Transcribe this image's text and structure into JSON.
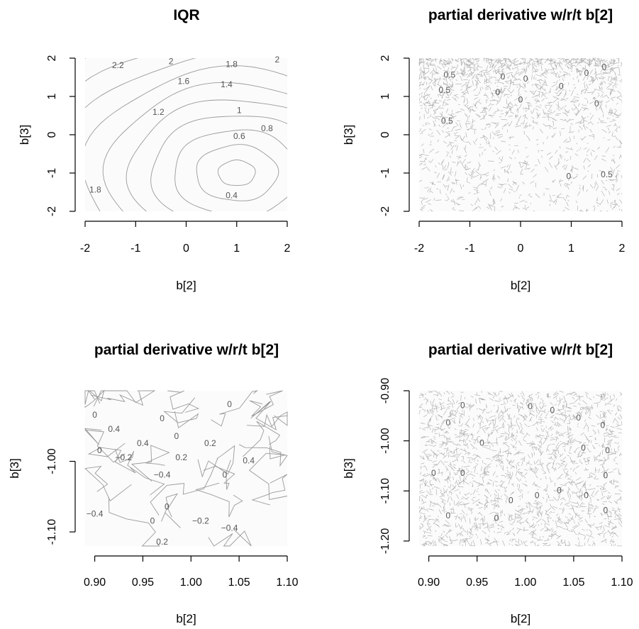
{
  "chart_data": [
    {
      "type": "contour",
      "title": "IQR",
      "xlabel": "b[2]",
      "ylabel": "b[3]",
      "xlim": [
        -2,
        2
      ],
      "ylim": [
        -2,
        2
      ],
      "xticks": [
        "-2",
        "-1",
        "0",
        "1",
        "2"
      ],
      "yticks": [
        "-2",
        "-1",
        "0",
        "1",
        "2"
      ],
      "minimum": {
        "x": 1.0,
        "y": -1.0
      },
      "levels": [
        0.4,
        0.6,
        0.8,
        1,
        1.2,
        1.4,
        1.6,
        1.8,
        2,
        2.2
      ],
      "contour_labels": [
        {
          "text": "2.2",
          "x": -1.35,
          "y": 1.8
        },
        {
          "text": "2",
          "x": -0.3,
          "y": 1.9
        },
        {
          "text": "1.8",
          "x": 0.9,
          "y": 1.83
        },
        {
          "text": "2",
          "x": 1.8,
          "y": 1.95
        },
        {
          "text": "1.6",
          "x": -0.05,
          "y": 1.38
        },
        {
          "text": "1.4",
          "x": 0.8,
          "y": 1.3
        },
        {
          "text": "1.2",
          "x": -0.55,
          "y": 0.58
        },
        {
          "text": "1",
          "x": 1.05,
          "y": 0.62
        },
        {
          "text": "0.8",
          "x": 1.6,
          "y": 0.15
        },
        {
          "text": "0.6",
          "x": 1.05,
          "y": -0.05
        },
        {
          "text": "0.4",
          "x": 0.9,
          "y": -1.6
        },
        {
          "text": "1.8",
          "x": -1.8,
          "y": -1.45
        }
      ]
    },
    {
      "type": "contour",
      "title": "partial derivative w/r/t b[2]",
      "xlabel": "b[2]",
      "ylabel": "b[3]",
      "xlim": [
        -2,
        2
      ],
      "ylim": [
        -2,
        2
      ],
      "xticks": [
        "-2",
        "-1",
        "0",
        "1",
        "2"
      ],
      "yticks": [
        "-2",
        "-1",
        "0",
        "1",
        "2"
      ],
      "contour_labels": [
        {
          "text": "0.5",
          "x": -1.4,
          "y": 1.55
        },
        {
          "text": "0.5",
          "x": -1.5,
          "y": 1.15
        },
        {
          "text": "0.5",
          "x": -1.45,
          "y": 0.35
        },
        {
          "text": "0",
          "x": -0.35,
          "y": 1.5
        },
        {
          "text": "0",
          "x": 0.1,
          "y": 1.45
        },
        {
          "text": "0",
          "x": 0.8,
          "y": 1.25
        },
        {
          "text": "0",
          "x": 1.3,
          "y": 1.6
        },
        {
          "text": "0",
          "x": 1.65,
          "y": 1.75
        },
        {
          "text": "0",
          "x": -0.45,
          "y": 1.1
        },
        {
          "text": "0",
          "x": 0.0,
          "y": 0.9
        },
        {
          "text": "0",
          "x": 1.5,
          "y": 0.8
        },
        {
          "text": "0",
          "x": 0.95,
          "y": -1.1
        },
        {
          "text": "0.5",
          "x": 1.7,
          "y": -1.05
        }
      ]
    },
    {
      "type": "contour",
      "title": "partial derivative w/r/t b[2]",
      "xlabel": "b[2]",
      "ylabel": "b[3]",
      "xlim": [
        0.89,
        1.1
      ],
      "ylim": [
        -1.12,
        -0.9
      ],
      "xticks": [
        "0.90",
        "0.95",
        "1.00",
        "1.05",
        "1.10"
      ],
      "yticks": [
        "-1.10",
        "-1.00"
      ],
      "contour_labels": [
        {
          "text": "0",
          "x": 0.9,
          "y": -0.935
        },
        {
          "text": "0",
          "x": 0.97,
          "y": -0.94
        },
        {
          "text": "0",
          "x": 0.985,
          "y": -0.965
        },
        {
          "text": "0",
          "x": 1.04,
          "y": -0.92
        },
        {
          "text": "0.4",
          "x": 0.92,
          "y": -0.955
        },
        {
          "text": "0.4",
          "x": 0.95,
          "y": -0.975
        },
        {
          "text": "0.2",
          "x": 1.02,
          "y": -0.975
        },
        {
          "text": "0",
          "x": 0.905,
          "y": -0.985
        },
        {
          "text": "−0.2",
          "x": 0.93,
          "y": -0.995
        },
        {
          "text": "0.2",
          "x": 0.99,
          "y": -0.995
        },
        {
          "text": "0.4",
          "x": 1.06,
          "y": -1.0
        },
        {
          "text": "−0.4",
          "x": 0.97,
          "y": -1.02
        },
        {
          "text": "0",
          "x": 1.035,
          "y": -1.02
        },
        {
          "text": "−0.4",
          "x": 0.9,
          "y": -1.075
        },
        {
          "text": "0",
          "x": 0.975,
          "y": -1.065
        },
        {
          "text": "−0.2",
          "x": 1.01,
          "y": -1.085
        },
        {
          "text": "0",
          "x": 0.96,
          "y": -1.085
        },
        {
          "text": "−0.4",
          "x": 1.04,
          "y": -1.095
        },
        {
          "text": "0.2",
          "x": 0.97,
          "y": -1.115
        }
      ]
    },
    {
      "type": "contour",
      "title": "partial derivative w/r/t b[2]",
      "xlabel": "b[2]",
      "ylabel": "b[3]",
      "xlim": [
        0.89,
        1.1
      ],
      "ylim": [
        -1.21,
        -0.9
      ],
      "xticks": [
        "0.90",
        "0.95",
        "1.00",
        "1.05",
        "1.10"
      ],
      "yticks": [
        "-1.20",
        "-1.10",
        "-1.00",
        "-0.90"
      ],
      "contour_labels": [
        {
          "text": "0",
          "x": 0.935,
          "y": -0.93
        },
        {
          "text": "0",
          "x": 1.005,
          "y": -0.932
        },
        {
          "text": "0",
          "x": 1.028,
          "y": -0.94
        },
        {
          "text": "0",
          "x": 0.92,
          "y": -0.965
        },
        {
          "text": "0",
          "x": 1.055,
          "y": -0.955
        },
        {
          "text": "0",
          "x": 1.08,
          "y": -0.97
        },
        {
          "text": "0",
          "x": 0.955,
          "y": -1.005
        },
        {
          "text": "0",
          "x": 1.06,
          "y": -1.015
        },
        {
          "text": "0",
          "x": 1.085,
          "y": -1.02
        },
        {
          "text": "0",
          "x": 0.905,
          "y": -1.065
        },
        {
          "text": "0",
          "x": 0.935,
          "y": -1.065
        },
        {
          "text": "0",
          "x": 1.083,
          "y": -1.07
        },
        {
          "text": "0",
          "x": 1.035,
          "y": -1.1
        },
        {
          "text": "0",
          "x": 1.012,
          "y": -1.11
        },
        {
          "text": "0",
          "x": 1.063,
          "y": -1.11
        },
        {
          "text": "0",
          "x": 0.985,
          "y": -1.12
        },
        {
          "text": "0",
          "x": 0.92,
          "y": -1.15
        },
        {
          "text": "0",
          "x": 0.97,
          "y": -1.155
        },
        {
          "text": "0",
          "x": 1.083,
          "y": -1.14
        }
      ]
    }
  ]
}
